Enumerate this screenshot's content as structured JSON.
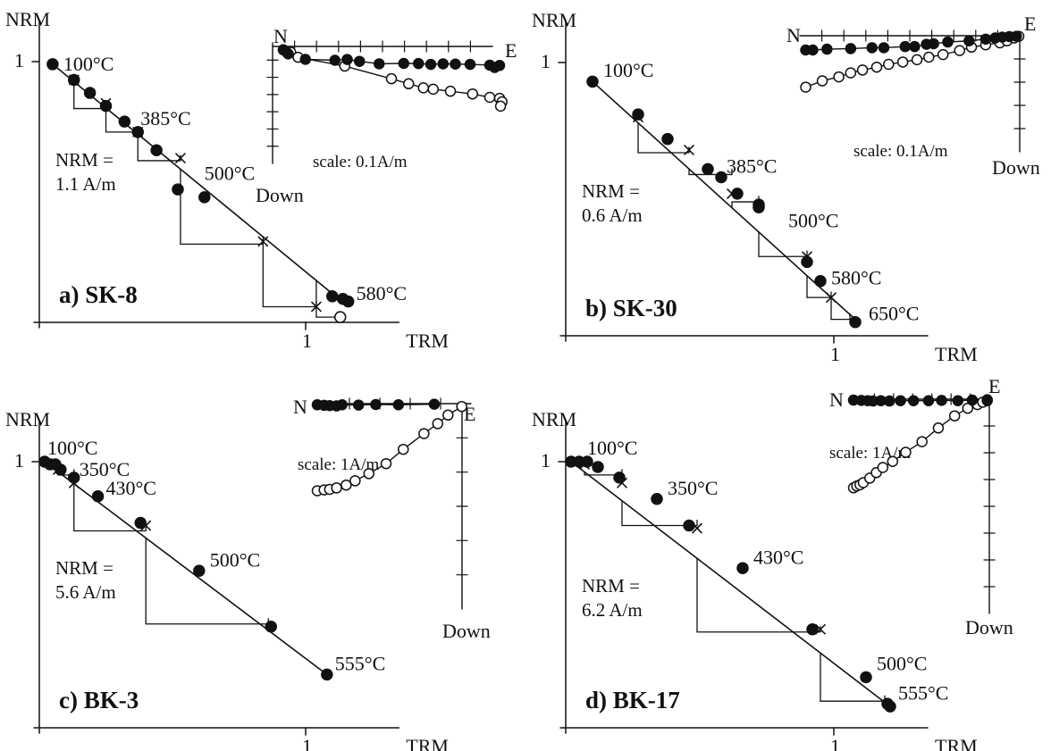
{
  "chart_data": [
    {
      "type": "scatter",
      "panel_label": "a) SK-8",
      "xlabel": "TRM",
      "ylabel": "NRM",
      "x_tick_label": "1",
      "y_tick_label": "1",
      "nrm_note": [
        "NRM =",
        "1.1 A/m"
      ],
      "xlim": [
        0,
        1.35
      ],
      "ylim": [
        0,
        1.0
      ],
      "x_ticks": [
        1
      ],
      "y_ticks": [
        1
      ],
      "series": [
        {
          "role": "nrm-trm",
          "x": [
            0.05,
            0.13,
            0.19,
            0.25,
            0.32,
            0.37,
            0.44,
            0.52,
            0.62,
            1.1,
            1.14,
            1.16
          ],
          "y": [
            0.99,
            0.93,
            0.88,
            0.83,
            0.77,
            0.73,
            0.66,
            0.51,
            0.48,
            0.1,
            0.09,
            0.08
          ]
        }
      ],
      "checks": {
        "x": [
          0.13,
          0.25,
          0.37,
          0.53,
          0.84,
          1.04
        ],
        "y": [
          0.93,
          0.84,
          0.73,
          0.63,
          0.31,
          0.06
        ]
      },
      "check_steps": [
        [
          0.13,
          0.82,
          0.25
        ],
        [
          0.25,
          0.73,
          0.37
        ],
        [
          0.37,
          0.62,
          0.53
        ],
        [
          0.53,
          0.3,
          0.84
        ],
        [
          0.84,
          0.06,
          1.04
        ],
        [
          1.04,
          0.02,
          1.12
        ]
      ],
      "fit_line": {
        "x": [
          0.05,
          1.16
        ],
        "y": [
          0.99,
          0.06
        ]
      },
      "step_labels": [
        {
          "text": "100°C",
          "x": 0.09,
          "y": 0.99
        },
        {
          "text": "385°C",
          "x": 0.38,
          "y": 0.78
        },
        {
          "text": "500°C",
          "x": 0.62,
          "y": 0.57
        },
        {
          "text": "580°C",
          "x": 1.19,
          "y": 0.11
        }
      ],
      "last_open_point": {
        "x": 1.13,
        "y": 0.02
      },
      "inset": {
        "n_label": "N",
        "e_label": "E",
        "down_label": "Down",
        "scale_label": "scale: 0.1A/m",
        "h_ticks": 9,
        "v_ticks": 6,
        "horizontal_points": [
          [
            0.0,
            0.25
          ],
          [
            0.05,
            0.35
          ],
          [
            0.1,
            0.55
          ],
          [
            0.45,
            0.95
          ],
          [
            1.05,
            1.02
          ],
          [
            1.3,
            0.96
          ],
          [
            1.55,
            1.1
          ],
          [
            1.95,
            1.28
          ],
          [
            2.45,
            1.25
          ],
          [
            2.75,
            1.26
          ],
          [
            3.0,
            1.32
          ],
          [
            3.25,
            1.28
          ],
          [
            3.5,
            1.3
          ],
          [
            3.8,
            1.32
          ],
          [
            4.2,
            1.38
          ],
          [
            4.3,
            1.55
          ],
          [
            4.4,
            1.4
          ]
        ],
        "vertical_points": [
          [
            0.0,
            0.25
          ],
          [
            0.15,
            0.42
          ],
          [
            0.3,
            0.8
          ],
          [
            1.25,
            1.45
          ],
          [
            2.2,
            2.38
          ],
          [
            2.55,
            2.75
          ],
          [
            2.85,
            3.05
          ],
          [
            3.05,
            3.15
          ],
          [
            3.4,
            3.3
          ],
          [
            3.85,
            3.5
          ],
          [
            4.2,
            3.75
          ],
          [
            4.4,
            3.82
          ],
          [
            4.45,
            4.08
          ],
          [
            4.42,
            4.4
          ]
        ]
      }
    },
    {
      "type": "scatter",
      "panel_label": "b) SK-30",
      "xlabel": "TRM",
      "ylabel": "NRM",
      "x_tick_label": "1",
      "y_tick_label": "1",
      "nrm_note": [
        "NRM =",
        "0.6 A/m"
      ],
      "xlim": [
        0,
        1.35
      ],
      "ylim": [
        0,
        1.0
      ],
      "x_ticks": [
        1
      ],
      "y_ticks": [
        1
      ],
      "series": [
        {
          "role": "nrm-trm",
          "x": [
            0.1,
            0.27,
            0.38,
            0.53,
            0.58,
            0.64,
            0.72,
            0.72,
            0.9,
            0.95,
            1.08
          ],
          "y": [
            0.93,
            0.81,
            0.72,
            0.61,
            0.58,
            0.52,
            0.48,
            0.47,
            0.27,
            0.2,
            0.05
          ]
        }
      ],
      "checks": {
        "x": [
          0.27,
          0.46,
          0.62,
          0.9,
          0.99
        ],
        "y": [
          0.8,
          0.68,
          0.52,
          0.29,
          0.14
        ]
      },
      "check_steps": [
        [
          0.27,
          0.67,
          0.46
        ],
        [
          0.46,
          0.59,
          0.62
        ],
        [
          0.62,
          0.49,
          0.72
        ],
        [
          0.72,
          0.29,
          0.9
        ],
        [
          0.9,
          0.14,
          0.99
        ],
        [
          0.99,
          0.06,
          1.06
        ]
      ],
      "fit_line": {
        "x": [
          0.1,
          1.08
        ],
        "y": [
          0.93,
          0.06
        ]
      },
      "step_labels": [
        {
          "text": "100°C",
          "x": 0.14,
          "y": 0.97
        },
        {
          "text": "385°C",
          "x": 0.6,
          "y": 0.62
        },
        {
          "text": "500°C",
          "x": 0.83,
          "y": 0.42
        },
        {
          "text": "580°C",
          "x": 0.99,
          "y": 0.21
        },
        {
          "text": "650°C",
          "x": 1.13,
          "y": 0.08
        }
      ],
      "inset": {
        "n_label": "N",
        "e_label": "E",
        "down_label": "Down",
        "scale_label": "scale: 0.1A/m",
        "h_ticks": 9,
        "v_ticks": 4,
        "horizontal_points": [
          [
            0.05,
            0.5
          ],
          [
            0.2,
            0.5
          ],
          [
            0.5,
            0.47
          ],
          [
            1.0,
            0.45
          ],
          [
            1.45,
            0.42
          ],
          [
            1.7,
            0.42
          ],
          [
            2.15,
            0.38
          ],
          [
            2.35,
            0.38
          ],
          [
            2.6,
            0.3
          ],
          [
            2.75,
            0.28
          ],
          [
            3.05,
            0.22
          ],
          [
            3.5,
            0.18
          ],
          [
            3.85,
            0.12
          ],
          [
            4.05,
            0.08
          ],
          [
            4.2,
            0.05
          ],
          [
            4.35,
            0.03
          ],
          [
            4.5,
            0.02
          ]
        ],
        "vertical_points": [
          [
            0.05,
            1.8
          ],
          [
            0.4,
            1.58
          ],
          [
            0.75,
            1.44
          ],
          [
            1.0,
            1.3
          ],
          [
            1.25,
            1.2
          ],
          [
            1.55,
            1.1
          ],
          [
            1.8,
            1.0
          ],
          [
            2.1,
            0.92
          ],
          [
            2.4,
            0.84
          ],
          [
            2.65,
            0.75
          ],
          [
            2.95,
            0.66
          ],
          [
            3.3,
            0.52
          ],
          [
            3.55,
            0.4
          ],
          [
            3.85,
            0.32
          ],
          [
            4.15,
            0.25
          ],
          [
            4.3,
            0.18
          ],
          [
            4.45,
            0.08
          ],
          [
            4.55,
            0.02
          ]
        ]
      }
    },
    {
      "type": "scatter",
      "panel_label": "c) BK-3",
      "xlabel": "TRM",
      "ylabel": "NRM",
      "x_tick_label": "1",
      "y_tick_label": "1",
      "nrm_note": [
        "NRM =",
        "5.6 A/m"
      ],
      "xlim": [
        0,
        1.35
      ],
      "ylim": [
        0,
        1.0
      ],
      "x_ticks": [
        1
      ],
      "y_ticks": [
        1
      ],
      "series": [
        {
          "role": "nrm-trm",
          "x": [
            0.02,
            0.04,
            0.06,
            0.08,
            0.13,
            0.22,
            0.38,
            0.6,
            0.87,
            1.08
          ],
          "y": [
            1.0,
            0.99,
            0.99,
            0.97,
            0.94,
            0.87,
            0.77,
            0.59,
            0.38,
            0.2
          ]
        }
      ],
      "checks": {
        "x": [
          0.07,
          0.13,
          0.4
        ],
        "y": [
          0.97,
          0.92,
          0.76
        ]
      },
      "check_steps": [
        [
          0.07,
          0.95,
          0.13
        ],
        [
          0.13,
          0.74,
          0.4
        ],
        [
          0.4,
          0.39,
          0.86
        ]
      ],
      "fit_line": {
        "x": [
          0.02,
          1.08
        ],
        "y": [
          1.0,
          0.2
        ]
      },
      "step_labels": [
        {
          "text": "100°C",
          "x": 0.03,
          "y": 1.05
        },
        {
          "text": "350°C",
          "x": 0.15,
          "y": 0.97
        },
        {
          "text": "430°C",
          "x": 0.25,
          "y": 0.9
        },
        {
          "text": "500°C",
          "x": 0.64,
          "y": 0.63
        },
        {
          "text": "555°C",
          "x": 1.11,
          "y": 0.24
        }
      ],
      "inset": {
        "n_label": "N",
        "e_label": "E",
        "down_label": "Down",
        "scale_label": "scale: 1A/m",
        "h_ticks": 4,
        "v_ticks": 5,
        "horizontal_points": [
          [
            0.0,
            0.04
          ],
          [
            0.1,
            0.06
          ],
          [
            0.18,
            0.07
          ],
          [
            0.28,
            0.08
          ],
          [
            0.36,
            0.04
          ],
          [
            0.6,
            0.05
          ],
          [
            0.85,
            0.03
          ],
          [
            1.18,
            0.04
          ],
          [
            1.7,
            0.02
          ]
        ],
        "vertical_points": [
          [
            0.0,
            3.05
          ],
          [
            0.1,
            3.02
          ],
          [
            0.18,
            3.0
          ],
          [
            0.28,
            2.95
          ],
          [
            0.42,
            2.85
          ],
          [
            0.55,
            2.7
          ],
          [
            0.75,
            2.45
          ],
          [
            1.0,
            2.1
          ],
          [
            1.25,
            1.6
          ],
          [
            1.55,
            1.05
          ],
          [
            1.75,
            0.7
          ],
          [
            1.9,
            0.4
          ],
          [
            2.1,
            0.1
          ]
        ]
      }
    },
    {
      "type": "scatter",
      "panel_label": "d) BK-17",
      "xlabel": "TRM",
      "ylabel": "NRM",
      "x_tick_label": "1",
      "y_tick_label": "1",
      "nrm_note": [
        "NRM =",
        "6.2 A/m"
      ],
      "xlim": [
        0,
        1.35
      ],
      "ylim": [
        0,
        1.0
      ],
      "x_ticks": [
        1
      ],
      "y_ticks": [
        1
      ],
      "series": [
        {
          "role": "nrm-trm",
          "x": [
            0.02,
            0.05,
            0.08,
            0.12,
            0.2,
            0.34,
            0.46,
            0.66,
            0.92,
            1.12,
            1.2,
            1.21
          ],
          "y": [
            1.0,
            1.0,
            1.0,
            0.98,
            0.94,
            0.86,
            0.76,
            0.6,
            0.37,
            0.19,
            0.09,
            0.08
          ]
        }
      ],
      "checks": {
        "x": [
          0.07,
          0.21,
          0.49,
          0.95
        ],
        "y": [
          0.99,
          0.92,
          0.75,
          0.37
        ]
      },
      "check_steps": [
        [
          0.07,
          0.95,
          0.21
        ],
        [
          0.21,
          0.76,
          0.49
        ],
        [
          0.49,
          0.36,
          0.95
        ],
        [
          0.95,
          0.1,
          1.19
        ]
      ],
      "fit_line": {
        "x": [
          0.02,
          1.21
        ],
        "y": [
          1.0,
          0.08
        ]
      },
      "step_labels": [
        {
          "text": "100°C",
          "x": 0.08,
          "y": 1.05
        },
        {
          "text": "350°C",
          "x": 0.38,
          "y": 0.9
        },
        {
          "text": "430°C",
          "x": 0.7,
          "y": 0.64
        },
        {
          "text": "500°C",
          "x": 1.16,
          "y": 0.24
        },
        {
          "text": "555°C",
          "x": 1.24,
          "y": 0.13
        }
      ],
      "inset": {
        "n_label": "N",
        "e_label": "E",
        "down_label": "Down",
        "scale_label": "scale: 1A/m",
        "h_ticks": 6,
        "v_ticks": 7,
        "horizontal_points": [
          [
            0.0,
            0.03
          ],
          [
            0.12,
            0.04
          ],
          [
            0.22,
            0.05
          ],
          [
            0.3,
            0.06
          ],
          [
            0.42,
            0.05
          ],
          [
            0.55,
            0.06
          ],
          [
            0.72,
            0.05
          ],
          [
            0.92,
            0.05
          ],
          [
            1.15,
            0.05
          ],
          [
            1.35,
            0.04
          ],
          [
            1.6,
            0.05
          ],
          [
            1.82,
            0.03
          ],
          [
            2.05,
            0.02
          ]
        ],
        "vertical_points": [
          [
            0.0,
            2.92
          ],
          [
            0.05,
            2.86
          ],
          [
            0.1,
            2.82
          ],
          [
            0.15,
            2.75
          ],
          [
            0.25,
            2.6
          ],
          [
            0.35,
            2.42
          ],
          [
            0.45,
            2.25
          ],
          [
            0.6,
            2.05
          ],
          [
            0.8,
            1.75
          ],
          [
            1.05,
            1.4
          ],
          [
            1.3,
            0.95
          ],
          [
            1.55,
            0.55
          ],
          [
            1.75,
            0.3
          ],
          [
            1.9,
            0.18
          ],
          [
            1.98,
            0.1
          ],
          [
            2.05,
            0.05
          ]
        ]
      }
    }
  ]
}
